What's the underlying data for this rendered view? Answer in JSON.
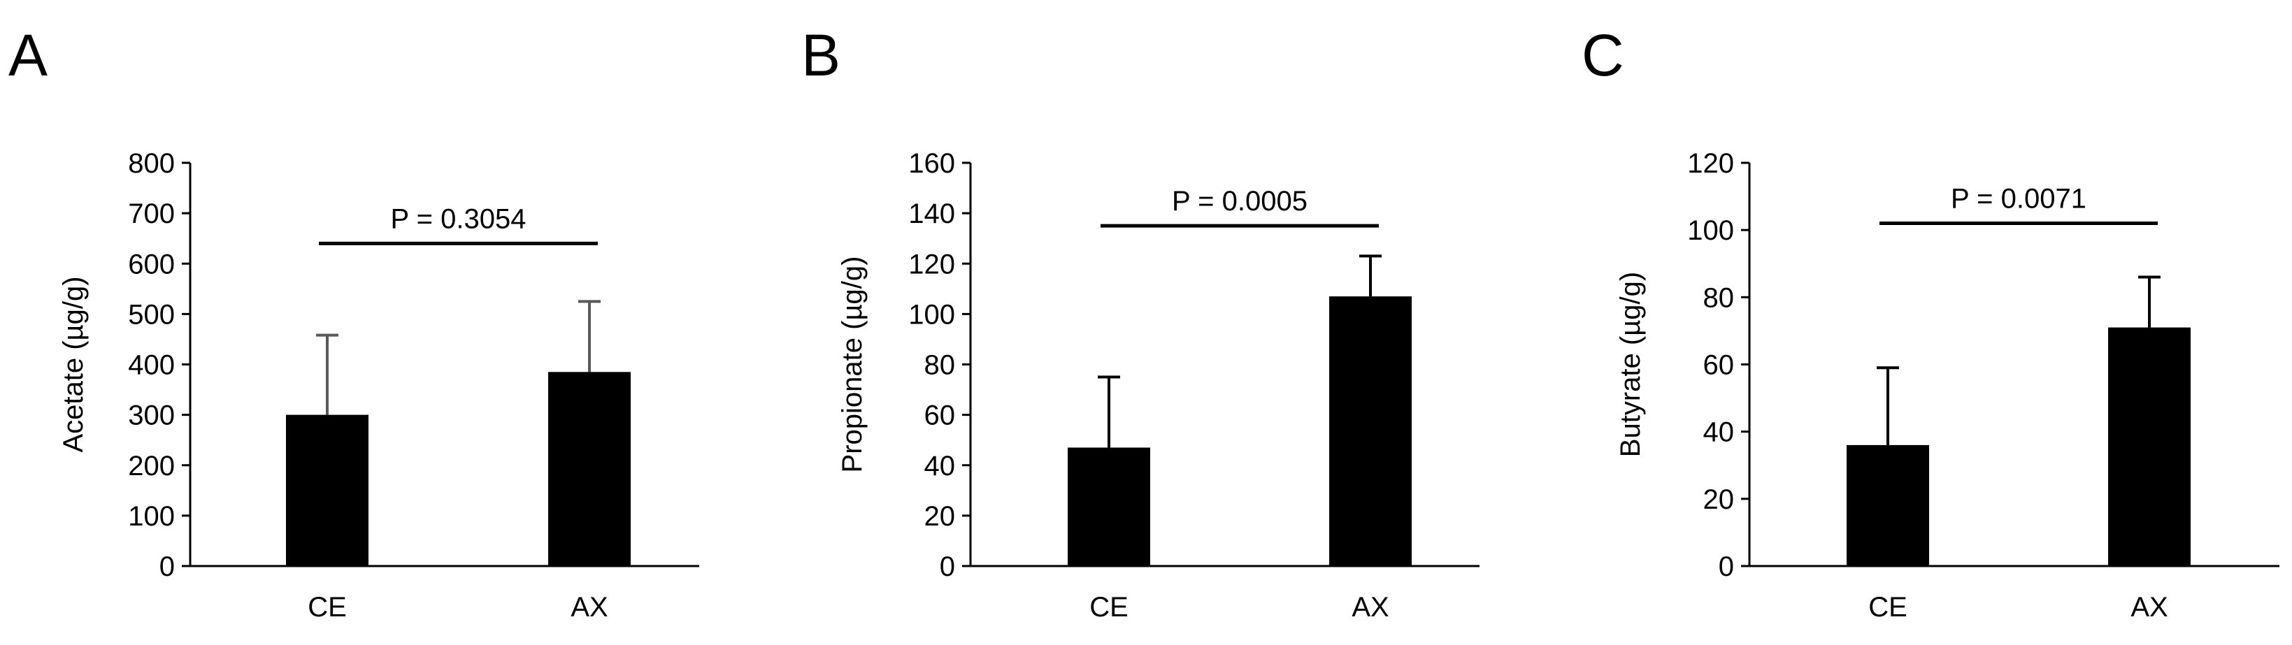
{
  "chart_data": [
    {
      "type": "bar",
      "panel_label": "A",
      "ylabel": "Acetate (µg/g)",
      "ylim": [
        0,
        800
      ],
      "yticks": [
        "0",
        "100",
        "200",
        "300",
        "400",
        "500",
        "600",
        "700",
        "800"
      ],
      "categories": [
        "CE",
        "AX"
      ],
      "values": [
        300,
        385
      ],
      "errors": [
        158,
        140
      ],
      "error_color": "#595959",
      "significance": {
        "text": "P = 0.3054",
        "y": 640
      }
    },
    {
      "type": "bar",
      "panel_label": "B",
      "ylabel": "Propionate (µg/g)",
      "ylim": [
        0,
        160
      ],
      "yticks": [
        "0",
        "20",
        "40",
        "60",
        "80",
        "100",
        "120",
        "140",
        "160"
      ],
      "categories": [
        "CE",
        "AX"
      ],
      "values": [
        47,
        107
      ],
      "errors": [
        28,
        16
      ],
      "error_color": "#000000",
      "significance": {
        "text": "P = 0.0005",
        "y": 135
      }
    },
    {
      "type": "bar",
      "panel_label": "C",
      "ylabel": "Butyrate (µg/g)",
      "ylim": [
        0,
        120
      ],
      "yticks": [
        "0",
        "20",
        "40",
        "60",
        "80",
        "100",
        "120"
      ],
      "categories": [
        "CE",
        "AX"
      ],
      "values": [
        36,
        71
      ],
      "errors": [
        23,
        15
      ],
      "error_color": "#000000",
      "significance": {
        "text": "P = 0.0071",
        "y": 102
      }
    }
  ]
}
